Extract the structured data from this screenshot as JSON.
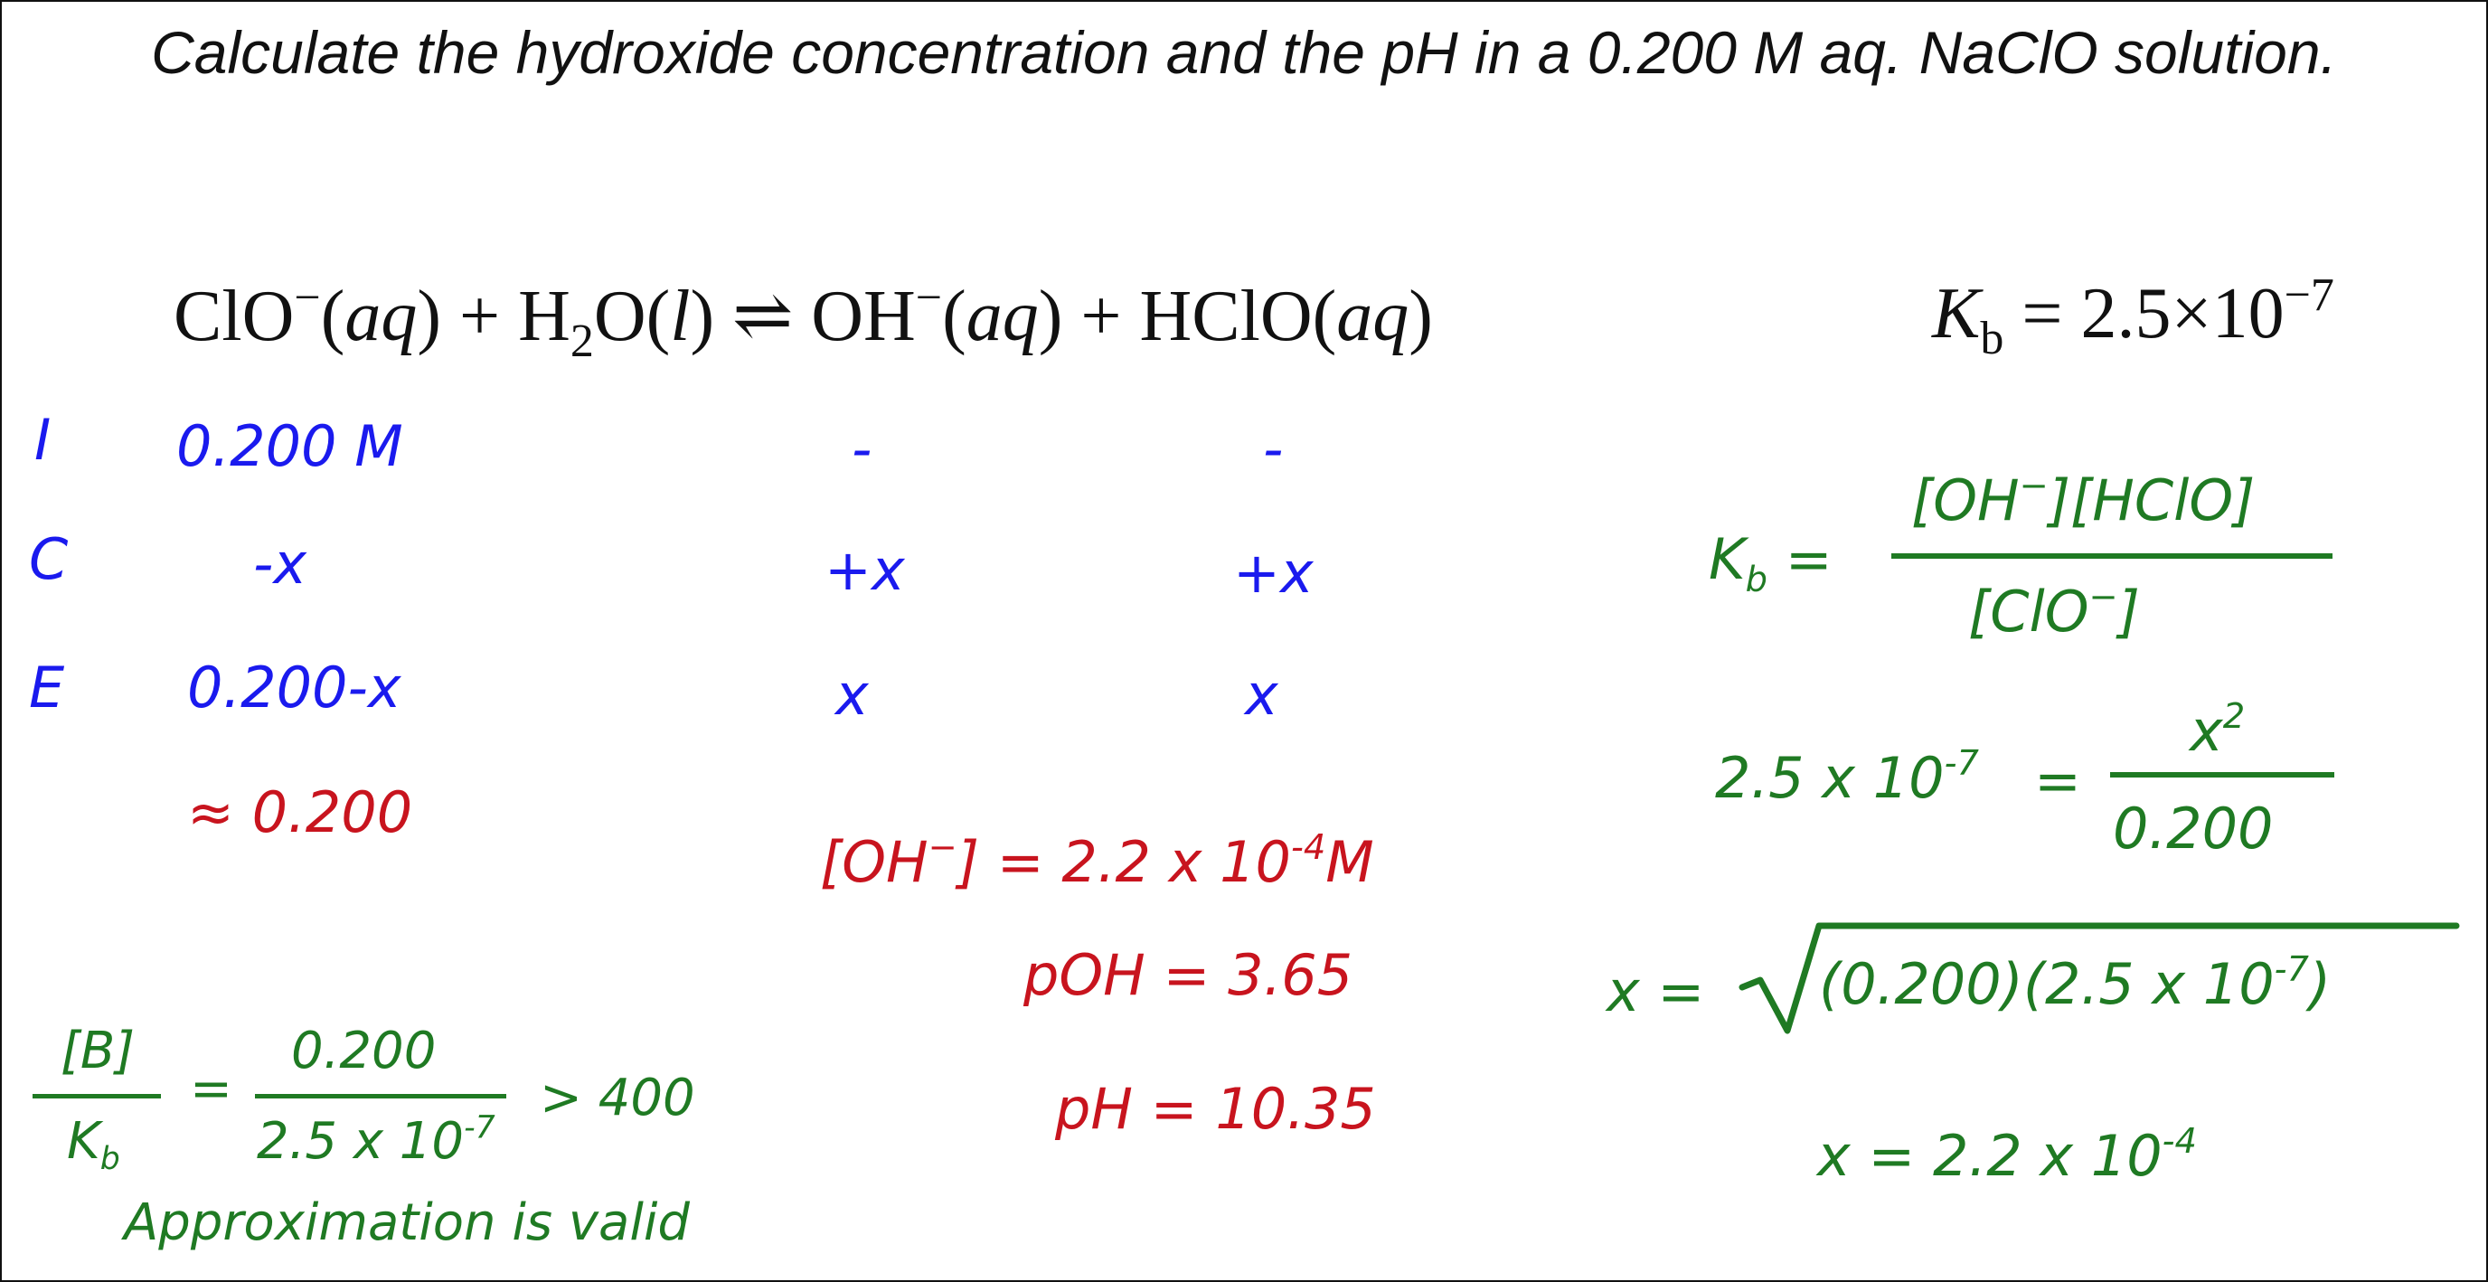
{
  "title": "Calculate the hydroxide concentration and the pH in a 0.200 M aq. NaClO solution.",
  "equation": {
    "r1_species": "ClO",
    "r1_charge": "−",
    "r1_state": "aq",
    "plus1": "+",
    "r2_species_a": "H",
    "r2_sub": "2",
    "r2_species_b": "O",
    "r2_state": "l",
    "arrow": "⇌",
    "p1_species": "OH",
    "p1_charge": "−",
    "p1_state": "aq",
    "plus2": "+",
    "p2_species": "HClO",
    "p2_state": "aq"
  },
  "kb_value": {
    "symbol": "K",
    "sub": "b",
    "equals": "= 2.5×10",
    "exp": "−7"
  },
  "ice": {
    "rows": [
      {
        "label": "I",
        "clo": "0.200  M",
        "oh": "-",
        "hclo": "-"
      },
      {
        "label": "C",
        "clo": "-x",
        "oh": "+x",
        "hclo": "+x"
      },
      {
        "label": "E",
        "clo": "0.200-x",
        "oh": "x",
        "hclo": "x"
      }
    ],
    "approx": "≈ 0.200"
  },
  "results": {
    "oh_conc_main": "[OH",
    "oh_conc_charge": "−",
    "oh_conc_rest": "] = 2.2 x 10",
    "oh_conc_exp": "-4",
    "oh_conc_unit": "M",
    "poh": "pOH = 3.65",
    "ph": "pH = 10.35"
  },
  "check": {
    "num_left": "[B]",
    "den_left_k": "K",
    "den_left_sub": "b",
    "equals": "=",
    "num_right": "0.200",
    "den_right_main": "2.5 x 10",
    "den_right_exp": "-7",
    "compare": "> 400",
    "verdict": "Approximation is valid"
  },
  "kb_expression": {
    "lhs_k": "K",
    "lhs_sub": "b",
    "lhs_eq": "=",
    "numerator_a": "[OH",
    "numerator_charge": "−",
    "numerator_b": "][HClO]",
    "denominator_a": "[ClO",
    "denominator_charge": "−",
    "denominator_b": "]"
  },
  "substitution": {
    "lhs_main": "2.5 x 10",
    "lhs_exp": "-7",
    "eq": "=",
    "numerator_x": "x",
    "numerator_exp": "2",
    "denominator": "0.200"
  },
  "sqrt_step": {
    "lhs": "x  =",
    "radicand_main": "(0.200)(2.5 x 10",
    "radicand_exp": "-7",
    "radicand_close": ")"
  },
  "x_result": {
    "main": "x  =  2.2 x 10",
    "exp": "-4"
  }
}
